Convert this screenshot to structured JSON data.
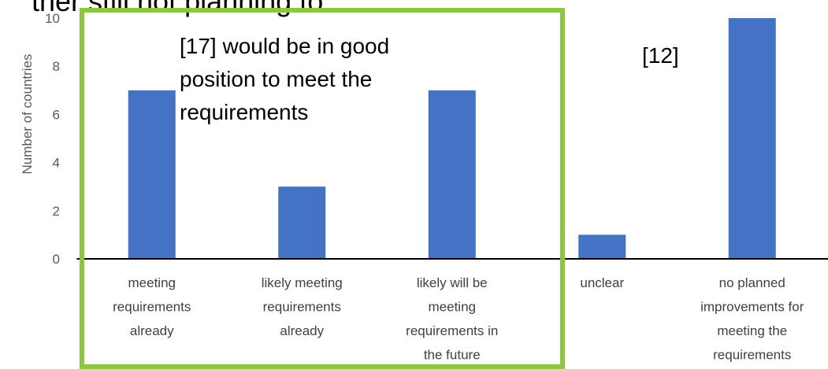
{
  "chart_data": {
    "type": "bar",
    "title": "ther still not planning to",
    "y_label": "Number of countries",
    "categories": [
      "meeting requirements already",
      "likely meeting requirements already",
      "likely will be meeting requirements in the future",
      "unclear",
      "no planned improvements for meeting the requirements"
    ],
    "values": [
      7,
      3,
      7,
      1,
      10
    ],
    "color": "#4472c4",
    "ylim": [
      0,
      10
    ],
    "yticks": [
      0,
      2,
      4,
      6,
      8,
      10
    ],
    "annotations": [
      "[17] would be in good position to meet the requirements",
      "[12]"
    ]
  }
}
